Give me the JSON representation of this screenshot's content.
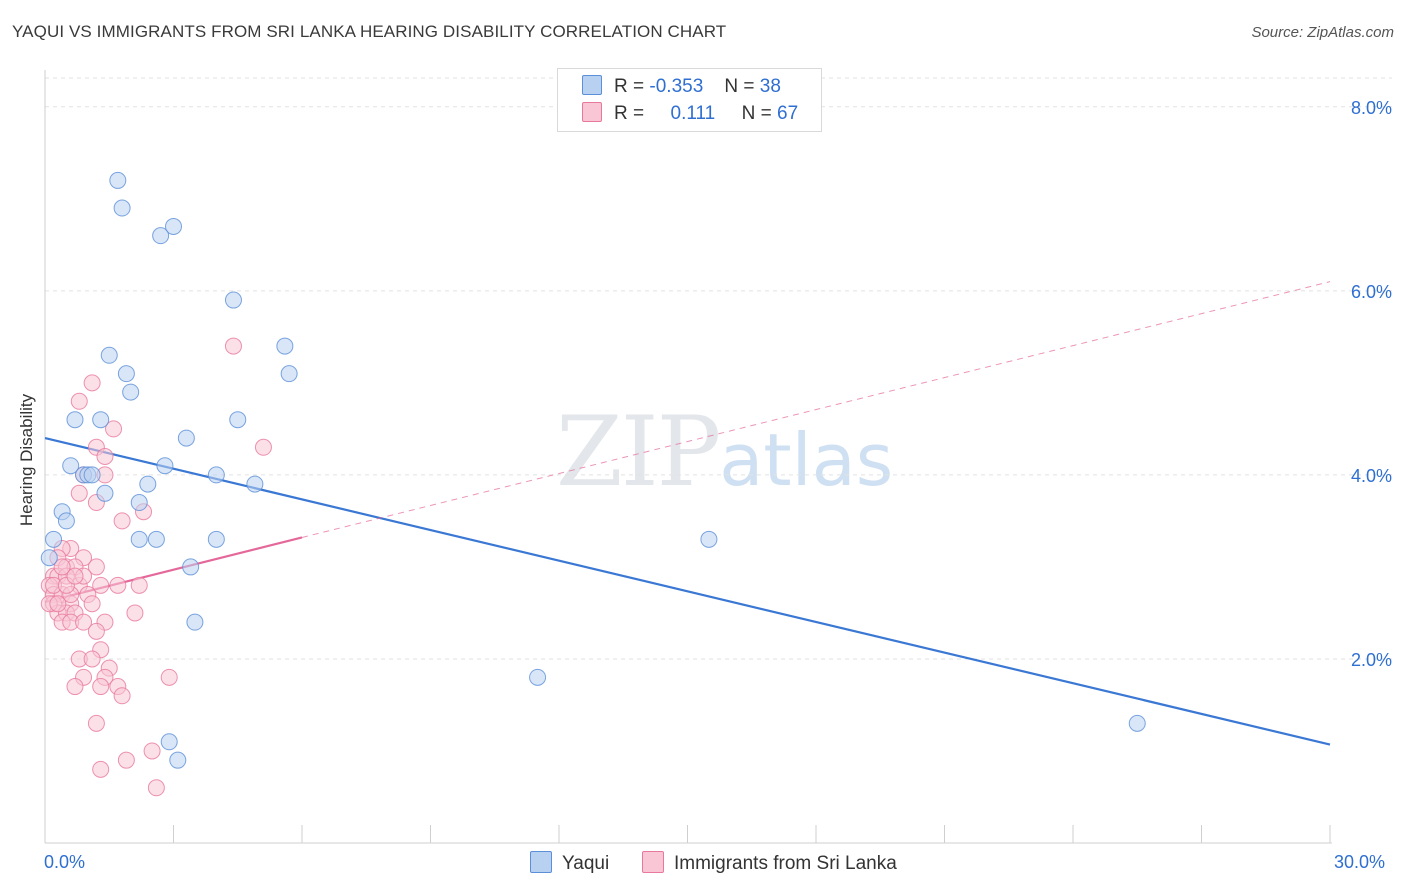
{
  "header": {
    "title": "YAQUI VS IMMIGRANTS FROM SRI LANKA HEARING DISABILITY CORRELATION CHART",
    "source": "Source: ZipAtlas.com"
  },
  "watermark": {
    "zip": "ZIP",
    "atlas": "atlas"
  },
  "legend": {
    "rows": [
      {
        "r_label": "R =",
        "r_value": "-0.353",
        "n_label": "N =",
        "n_value": "38"
      },
      {
        "r_label": "R =",
        "r_value": "0.111",
        "n_label": "N =",
        "n_value": "67"
      }
    ]
  },
  "colors": {
    "yaqui": "#5b8fd8",
    "yaqui_fill": "#b9d1f1",
    "srilanka": "#e8789c",
    "srilanka_fill": "#f8c6d5",
    "blue_text": "#2f6fd1"
  },
  "chart_data": {
    "type": "scatter",
    "title": "YAQUI VS IMMIGRANTS FROM SRI LANKA HEARING DISABILITY CORRELATION CHART",
    "xlabel": "",
    "ylabel": "Hearing Disability",
    "xlim": [
      0,
      30
    ],
    "ylim": [
      0,
      8.4
    ],
    "x_tick_labels": [
      "0.0%",
      "30.0%"
    ],
    "y_ticks": [
      2,
      4,
      6,
      8
    ],
    "y_tick_labels": [
      "2.0%",
      "4.0%",
      "6.0%",
      "8.0%"
    ],
    "series": [
      {
        "name": "Yaqui",
        "points": [
          [
            1.7,
            7.2
          ],
          [
            1.8,
            6.9
          ],
          [
            2.7,
            6.6
          ],
          [
            3.0,
            6.7
          ],
          [
            4.4,
            5.9
          ],
          [
            5.6,
            5.4
          ],
          [
            5.7,
            5.1
          ],
          [
            1.5,
            5.3
          ],
          [
            1.9,
            5.1
          ],
          [
            2.0,
            4.9
          ],
          [
            0.7,
            4.6
          ],
          [
            1.3,
            4.6
          ],
          [
            4.5,
            4.6
          ],
          [
            3.3,
            4.4
          ],
          [
            0.6,
            4.1
          ],
          [
            0.9,
            4.0
          ],
          [
            1.0,
            4.0
          ],
          [
            1.1,
            4.0
          ],
          [
            2.8,
            4.1
          ],
          [
            4.0,
            4.0
          ],
          [
            4.9,
            3.9
          ],
          [
            2.4,
            3.9
          ],
          [
            2.2,
            3.7
          ],
          [
            1.4,
            3.8
          ],
          [
            0.4,
            3.6
          ],
          [
            0.5,
            3.5
          ],
          [
            0.2,
            3.3
          ],
          [
            2.2,
            3.3
          ],
          [
            2.6,
            3.3
          ],
          [
            4.0,
            3.3
          ],
          [
            3.4,
            3.0
          ],
          [
            15.5,
            3.3
          ],
          [
            3.5,
            2.4
          ],
          [
            11.5,
            1.8
          ],
          [
            2.9,
            1.1
          ],
          [
            3.1,
            0.9
          ],
          [
            25.5,
            1.3
          ],
          [
            0.1,
            3.1
          ]
        ]
      },
      {
        "name": "Immigrants from Sri Lanka",
        "points": [
          [
            4.4,
            5.4
          ],
          [
            1.1,
            5.0
          ],
          [
            0.8,
            4.8
          ],
          [
            1.6,
            4.5
          ],
          [
            5.1,
            4.3
          ],
          [
            1.2,
            4.3
          ],
          [
            1.4,
            4.2
          ],
          [
            0.9,
            4.0
          ],
          [
            1.4,
            4.0
          ],
          [
            0.8,
            3.8
          ],
          [
            1.2,
            3.7
          ],
          [
            2.3,
            3.6
          ],
          [
            1.8,
            3.5
          ],
          [
            0.6,
            3.2
          ],
          [
            0.4,
            3.2
          ],
          [
            0.9,
            3.1
          ],
          [
            0.3,
            3.1
          ],
          [
            0.5,
            3.0
          ],
          [
            0.7,
            3.0
          ],
          [
            1.2,
            3.0
          ],
          [
            0.2,
            2.9
          ],
          [
            0.3,
            2.9
          ],
          [
            0.5,
            2.9
          ],
          [
            0.8,
            2.8
          ],
          [
            1.3,
            2.8
          ],
          [
            0.1,
            2.8
          ],
          [
            0.2,
            2.7
          ],
          [
            0.4,
            2.7
          ],
          [
            0.6,
            2.6
          ],
          [
            2.2,
            2.8
          ],
          [
            1.7,
            2.8
          ],
          [
            1.0,
            2.7
          ],
          [
            0.2,
            2.6
          ],
          [
            0.3,
            2.5
          ],
          [
            0.5,
            2.5
          ],
          [
            0.7,
            2.5
          ],
          [
            1.1,
            2.6
          ],
          [
            0.4,
            2.4
          ],
          [
            0.6,
            2.4
          ],
          [
            0.9,
            2.4
          ],
          [
            1.4,
            2.4
          ],
          [
            2.1,
            2.5
          ],
          [
            1.2,
            2.3
          ],
          [
            1.3,
            2.1
          ],
          [
            0.8,
            2.0
          ],
          [
            1.1,
            2.0
          ],
          [
            1.5,
            1.9
          ],
          [
            1.4,
            1.8
          ],
          [
            0.9,
            1.8
          ],
          [
            0.7,
            1.7
          ],
          [
            1.3,
            1.7
          ],
          [
            1.7,
            1.7
          ],
          [
            2.9,
            1.8
          ],
          [
            1.8,
            1.6
          ],
          [
            1.2,
            1.3
          ],
          [
            1.9,
            0.9
          ],
          [
            2.5,
            1.0
          ],
          [
            1.3,
            0.8
          ],
          [
            2.6,
            0.6
          ],
          [
            0.1,
            2.6
          ],
          [
            0.2,
            2.8
          ],
          [
            0.4,
            3.0
          ],
          [
            0.6,
            2.7
          ],
          [
            0.9,
            2.9
          ],
          [
            0.3,
            2.6
          ],
          [
            0.5,
            2.8
          ],
          [
            0.7,
            2.9
          ]
        ]
      }
    ],
    "trendlines": [
      {
        "series": "Yaqui",
        "x": [
          0,
          30
        ],
        "y": [
          4.4,
          1.07
        ],
        "style": "solid"
      },
      {
        "series": "Immigrants from Sri Lanka",
        "x": [
          0,
          6
        ],
        "y": [
          2.62,
          3.32
        ],
        "style": "solid"
      },
      {
        "series": "Immigrants from Sri Lanka",
        "x": [
          6,
          30
        ],
        "y": [
          3.32,
          6.1
        ],
        "style": "dashed"
      }
    ],
    "legend": [
      "Yaqui",
      "Immigrants from Sri Lanka"
    ],
    "grid": true
  }
}
